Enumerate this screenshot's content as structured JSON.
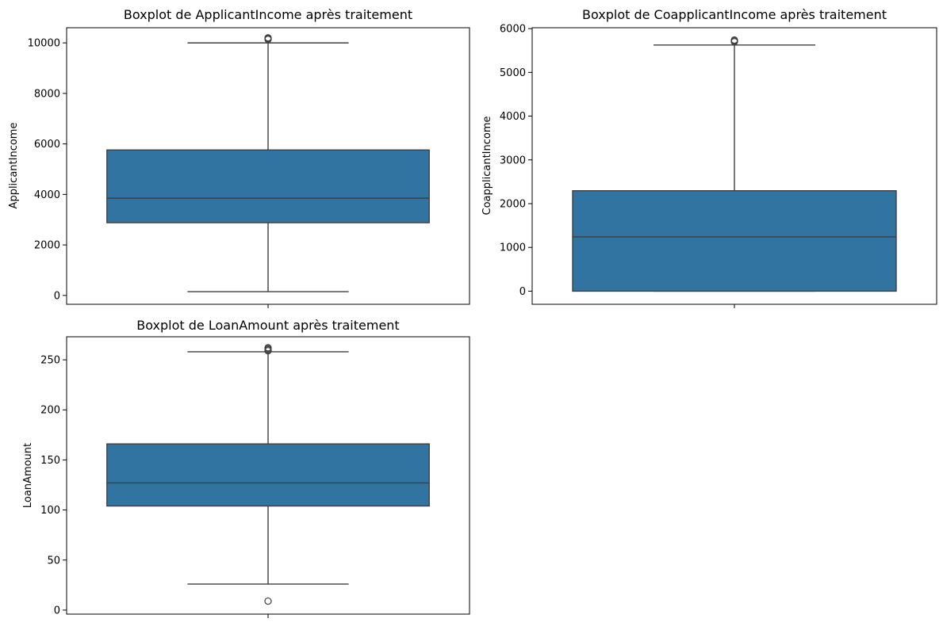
{
  "chart_data": [
    {
      "type": "box",
      "title": "Boxplot de ApplicantIncome après traitement",
      "ylabel": "ApplicantIncome",
      "ylim": [
        -350,
        10600
      ],
      "yticks": [
        0,
        2000,
        4000,
        6000,
        8000,
        10000
      ],
      "box": {
        "whisker_low": 150,
        "q1": 2880,
        "median": 3850,
        "q3": 5760,
        "whisker_high": 10000
      },
      "outliers": [
        10139,
        10171,
        10180,
        10200
      ],
      "color": "#3274a1"
    },
    {
      "type": "box",
      "title": "Boxplot de CoapplicantIncome après traitement",
      "ylabel": "CoapplicantIncome",
      "ylim": [
        -300,
        6020
      ],
      "yticks": [
        0,
        1000,
        2000,
        3000,
        4000,
        5000,
        6000
      ],
      "box": {
        "whisker_low": 0,
        "q1": 0,
        "median": 1240,
        "q3": 2295,
        "whisker_high": 5625
      },
      "outliers": [
        5701,
        5720,
        5740
      ],
      "color": "#3274a1"
    },
    {
      "type": "box",
      "title": "Boxplot de LoanAmount après traitement",
      "ylabel": "LoanAmount",
      "ylim": [
        -4,
        273
      ],
      "yticks": [
        0,
        50,
        100,
        150,
        200,
        250
      ],
      "box": {
        "whisker_low": 26,
        "q1": 104,
        "median": 127,
        "q3": 166,
        "whisker_high": 258
      },
      "outliers": [
        9,
        259,
        260,
        261,
        262
      ],
      "color": "#3274a1"
    }
  ]
}
